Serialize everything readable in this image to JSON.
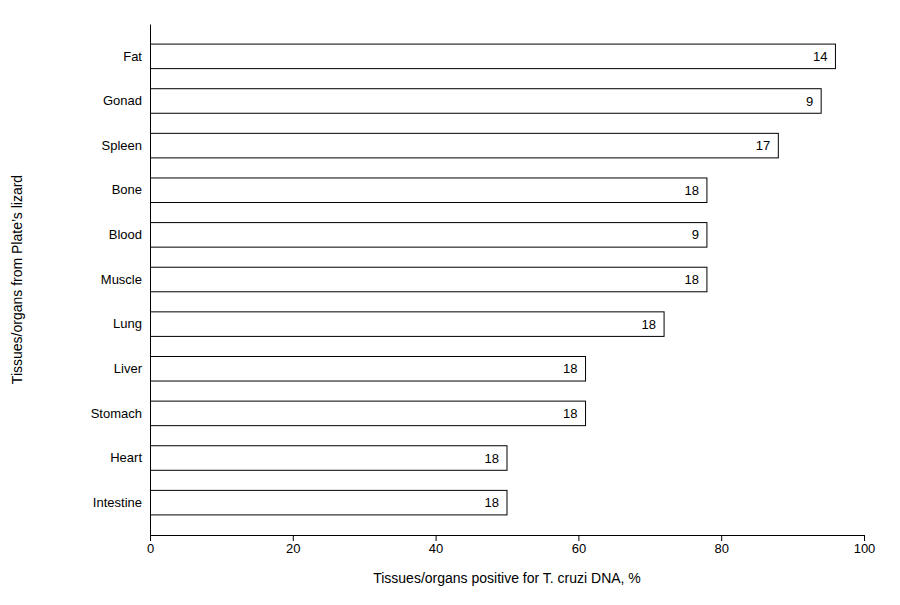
{
  "chart_data": {
    "type": "bar",
    "orientation": "horizontal",
    "categories": [
      "Intestine",
      "Heart",
      "Stomach",
      "Liver",
      "Lung",
      "Muscle",
      "Blood",
      "Bone",
      "Spleen",
      "Gonad",
      "Fat"
    ],
    "values": [
      50,
      50,
      61,
      61,
      72,
      78,
      78,
      78,
      88,
      94,
      96
    ],
    "counts": [
      18,
      18,
      18,
      18,
      18,
      18,
      9,
      18,
      17,
      9,
      14
    ],
    "color": "#ffffff",
    "x_label": "Tissues/organs positive for T. cruzi DNA, %",
    "y_label": "Tissues/organs from Plate’s lizard",
    "xlim": [
      0,
      100
    ],
    "xticks": [
      0,
      20,
      40,
      60,
      80,
      100
    ],
    "grid": false
  }
}
